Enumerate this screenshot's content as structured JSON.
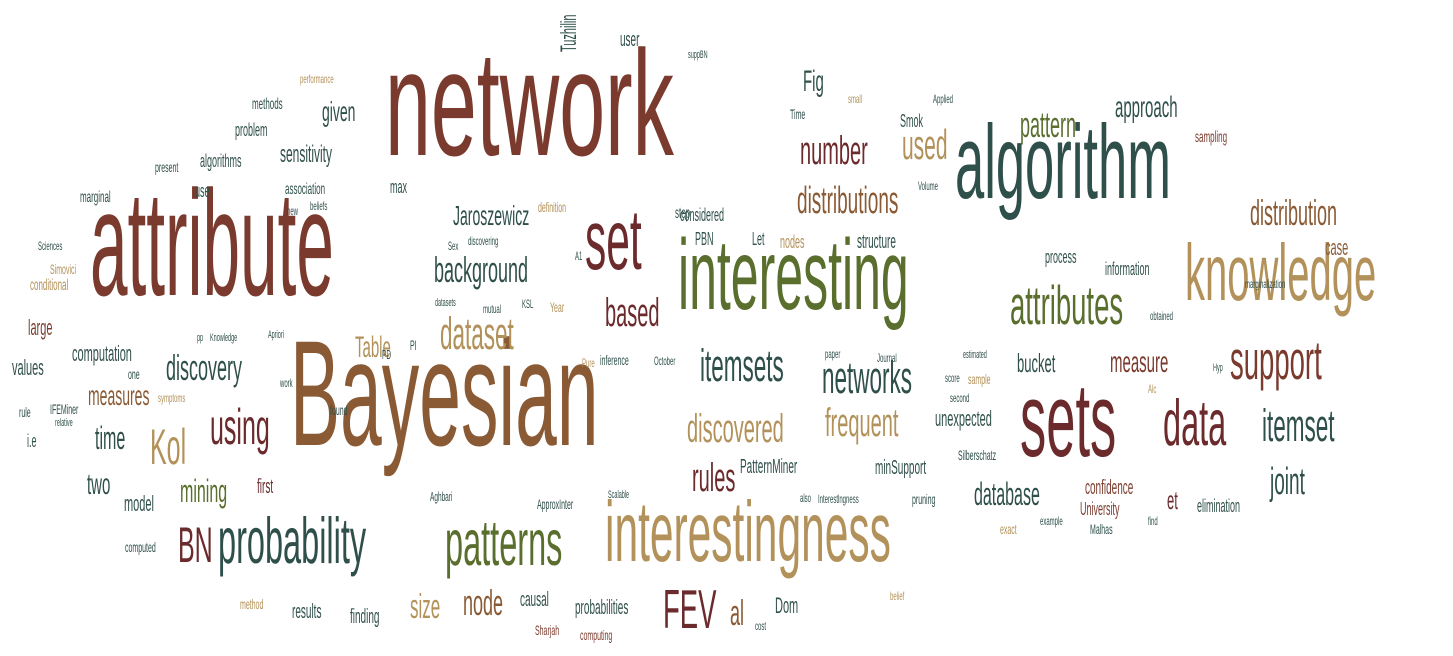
{
  "palette": {
    "rust": "#7a3b2e",
    "maroon": "#6b2a2c",
    "olive": "#5a6e2e",
    "teal": "#2f4f4a",
    "khaki": "#b2925a",
    "brown": "#8a5a34",
    "moss": "#6f6a2e",
    "wine": "#5d2731"
  },
  "words": [
    {
      "text": "network",
      "color": "#7a3b2e"
    },
    {
      "text": "Bayesian",
      "color": "#8a5a34"
    },
    {
      "text": "attribute",
      "color": "#7a3b2e"
    },
    {
      "text": "algorithm",
      "color": "#2f4f4a"
    },
    {
      "text": "interesting",
      "color": "#5a6e2e"
    },
    {
      "text": "interestingness",
      "color": "#b2925a"
    },
    {
      "text": "knowledge",
      "color": "#b2925a"
    },
    {
      "text": "sets",
      "color": "#6b2a2c"
    },
    {
      "text": "set",
      "color": "#6b2a2c"
    },
    {
      "text": "probability",
      "color": "#2f4f4a"
    },
    {
      "text": "patterns",
      "color": "#5a6e2e"
    },
    {
      "text": "data",
      "color": "#6b2a2c"
    },
    {
      "text": "attributes",
      "color": "#5a6e2e"
    },
    {
      "text": "support",
      "color": "#7a3b2e"
    },
    {
      "text": "FEV",
      "color": "#6b2a2c"
    },
    {
      "text": "itemsets",
      "color": "#2f4f4a"
    },
    {
      "text": "networks",
      "color": "#2f4f4a"
    },
    {
      "text": "itemset",
      "color": "#2f4f4a"
    },
    {
      "text": "dataset",
      "color": "#b2925a"
    },
    {
      "text": "based",
      "color": "#6b2a2c"
    },
    {
      "text": "using",
      "color": "#6b2a2c"
    },
    {
      "text": "Kol",
      "color": "#b2925a"
    },
    {
      "text": "BN",
      "color": "#6b2a2c"
    },
    {
      "text": "discovered",
      "color": "#b2925a"
    },
    {
      "text": "frequent",
      "color": "#b2925a"
    },
    {
      "text": "rules",
      "color": "#6b2a2c"
    },
    {
      "text": "distributions",
      "color": "#8a5a34"
    },
    {
      "text": "distribution",
      "color": "#8a5a34"
    },
    {
      "text": "pattern",
      "color": "#5a6e2e"
    },
    {
      "text": "approach",
      "color": "#2f4f4a"
    },
    {
      "text": "number",
      "color": "#6b2a2c"
    },
    {
      "text": "used",
      "color": "#b2925a"
    },
    {
      "text": "Fig",
      "color": "#2f4f4a"
    },
    {
      "text": "background",
      "color": "#2f4f4a"
    },
    {
      "text": "Jaroszewicz",
      "color": "#2f4f4a"
    },
    {
      "text": "measure",
      "color": "#7a3b2e"
    },
    {
      "text": "joint",
      "color": "#2f4f4a"
    },
    {
      "text": "et",
      "color": "#6b2a2c"
    },
    {
      "text": "al",
      "color": "#8a5a34"
    },
    {
      "text": "node",
      "color": "#8a5a34"
    },
    {
      "text": "size",
      "color": "#b2925a"
    },
    {
      "text": "discovery",
      "color": "#2f4f4a"
    },
    {
      "text": "measures",
      "color": "#8a5a34"
    },
    {
      "text": "mining",
      "color": "#5a6e2e"
    },
    {
      "text": "time",
      "color": "#2f4f4a"
    },
    {
      "text": "Table",
      "color": "#b2925a"
    },
    {
      "text": "two",
      "color": "#2f4f4a"
    },
    {
      "text": "database",
      "color": "#2f4f4a"
    },
    {
      "text": "sensitivity",
      "color": "#2f4f4a"
    },
    {
      "text": "given",
      "color": "#2f4f4a"
    },
    {
      "text": "bucket",
      "color": "#2f4f4a"
    },
    {
      "text": "case",
      "color": "#8a5a34"
    },
    {
      "text": "unexpected",
      "color": "#2f4f4a"
    },
    {
      "text": "large",
      "color": "#7a3b2e"
    },
    {
      "text": "computation",
      "color": "#2f4f4a"
    },
    {
      "text": "values",
      "color": "#2f4f4a"
    },
    {
      "text": "model",
      "color": "#2f4f4a"
    },
    {
      "text": "first",
      "color": "#6b2a2c"
    },
    {
      "text": "causal",
      "color": "#2f4f4a"
    },
    {
      "text": "probabilities",
      "color": "#2f4f4a"
    },
    {
      "text": "finding",
      "color": "#2f4f4a"
    },
    {
      "text": "results",
      "color": "#2f4f4a"
    },
    {
      "text": "Dom",
      "color": "#2f4f4a"
    },
    {
      "text": "Tuzhilin",
      "color": "#2f4f4a"
    },
    {
      "text": "user",
      "color": "#2f4f4a"
    },
    {
      "text": "problem",
      "color": "#2f4f4a"
    },
    {
      "text": "algorithms",
      "color": "#2f4f4a"
    },
    {
      "text": "use",
      "color": "#2f4f4a"
    },
    {
      "text": "methods",
      "color": "#2f4f4a"
    },
    {
      "text": "PatternMiner",
      "color": "#2f4f4a"
    },
    {
      "text": "minSupport",
      "color": "#2f4f4a"
    },
    {
      "text": "confidence",
      "color": "#7a3b2e"
    },
    {
      "text": "University",
      "color": "#7a3b2e"
    },
    {
      "text": "elimination",
      "color": "#2f4f4a"
    },
    {
      "text": "process",
      "color": "#2f4f4a"
    },
    {
      "text": "information",
      "color": "#2f4f4a"
    },
    {
      "text": "structure",
      "color": "#2f4f4a"
    },
    {
      "text": "considered",
      "color": "#2f4f4a"
    },
    {
      "text": "PBN",
      "color": "#2f4f4a"
    },
    {
      "text": "nodes",
      "color": "#b2925a"
    },
    {
      "text": "Let",
      "color": "#2f4f4a"
    },
    {
      "text": "step",
      "color": "#2f4f4a"
    },
    {
      "text": "Smok",
      "color": "#2f4f4a"
    },
    {
      "text": "max",
      "color": "#2f4f4a"
    },
    {
      "text": "sampling",
      "color": "#7a3b2e"
    },
    {
      "text": "conditional",
      "color": "#b2925a"
    },
    {
      "text": "marginal",
      "color": "#2f4f4a"
    },
    {
      "text": "association",
      "color": "#2f4f4a"
    },
    {
      "text": "present",
      "color": "#2f4f4a"
    },
    {
      "text": "computed",
      "color": "#2f4f4a"
    },
    {
      "text": "method",
      "color": "#b2925a"
    },
    {
      "text": "computing",
      "color": "#7a3b2e"
    },
    {
      "text": "Sharjah",
      "color": "#7a3b2e"
    },
    {
      "text": "exact",
      "color": "#b2925a"
    },
    {
      "text": "example",
      "color": "#2f4f4a"
    },
    {
      "text": "Malhas",
      "color": "#2f4f4a"
    },
    {
      "text": "find",
      "color": "#2f4f4a"
    },
    {
      "text": "pruning",
      "color": "#2f4f4a"
    },
    {
      "text": "Interestlngness",
      "color": "#2f4f4a"
    },
    {
      "text": "also",
      "color": "#2f4f4a"
    },
    {
      "text": "ApproxInter",
      "color": "#2f4f4a"
    },
    {
      "text": "Aghbari",
      "color": "#2f4f4a"
    },
    {
      "text": "Scalable",
      "color": "#2f4f4a"
    },
    {
      "text": "Pure",
      "color": "#b2925a"
    },
    {
      "text": "inference",
      "color": "#2f4f4a"
    },
    {
      "text": "October",
      "color": "#2f4f4a"
    },
    {
      "text": "paper",
      "color": "#2f4f4a"
    },
    {
      "text": "Journal",
      "color": "#2f4f4a"
    },
    {
      "text": "score",
      "color": "#2f4f4a"
    },
    {
      "text": "second",
      "color": "#2f4f4a"
    },
    {
      "text": "sample",
      "color": "#b2925a"
    },
    {
      "text": "estimated",
      "color": "#2f4f4a"
    },
    {
      "text": "Hyp",
      "color": "#2f4f4a"
    },
    {
      "text": "Alc",
      "color": "#b2925a"
    },
    {
      "text": "Silberschatz",
      "color": "#2f4f4a"
    },
    {
      "text": "belief",
      "color": "#b2925a"
    },
    {
      "text": "cost",
      "color": "#2f4f4a"
    },
    {
      "text": "obtained",
      "color": "#2f4f4a"
    },
    {
      "text": "marginalization",
      "color": "#2f4f4a"
    },
    {
      "text": "Applied",
      "color": "#2f4f4a"
    },
    {
      "text": "small",
      "color": "#b2925a"
    },
    {
      "text": "Time",
      "color": "#2f4f4a"
    },
    {
      "text": "Volume",
      "color": "#2f4f4a"
    },
    {
      "text": "definition",
      "color": "#b2925a"
    },
    {
      "text": "new",
      "color": "#2f4f4a"
    },
    {
      "text": "beliefs",
      "color": "#2f4f4a"
    },
    {
      "text": "Sex",
      "color": "#2f4f4a"
    },
    {
      "text": "discovering",
      "color": "#2f4f4a"
    },
    {
      "text": "A1",
      "color": "#2f4f4a"
    },
    {
      "text": "datasets",
      "color": "#2f4f4a"
    },
    {
      "text": "mutual",
      "color": "#2f4f4a"
    },
    {
      "text": "KSL",
      "color": "#2f4f4a"
    },
    {
      "text": "Year",
      "color": "#b2925a"
    },
    {
      "text": "Apriori",
      "color": "#2f4f4a"
    },
    {
      "text": "pp",
      "color": "#2f4f4a"
    },
    {
      "text": "Knowledge",
      "color": "#2f4f4a"
    },
    {
      "text": "PD",
      "color": "#2f4f4a"
    },
    {
      "text": "PI",
      "color": "#2f4f4a"
    },
    {
      "text": "work",
      "color": "#2f4f4a"
    },
    {
      "text": "found",
      "color": "#2f4f4a"
    },
    {
      "text": "one",
      "color": "#2f4f4a"
    },
    {
      "text": "symptoms",
      "color": "#b2925a"
    },
    {
      "text": "rule",
      "color": "#2f4f4a"
    },
    {
      "text": "i.e",
      "color": "#2f4f4a"
    },
    {
      "text": "relative",
      "color": "#2f4f4a"
    },
    {
      "text": "IFEMiner",
      "color": "#2f4f4a"
    },
    {
      "text": "Sciences",
      "color": "#2f4f4a"
    },
    {
      "text": "Simovici",
      "color": "#b2925a"
    },
    {
      "text": "performance",
      "color": "#b2925a"
    },
    {
      "text": "suppBN",
      "color": "#2f4f4a"
    }
  ]
}
